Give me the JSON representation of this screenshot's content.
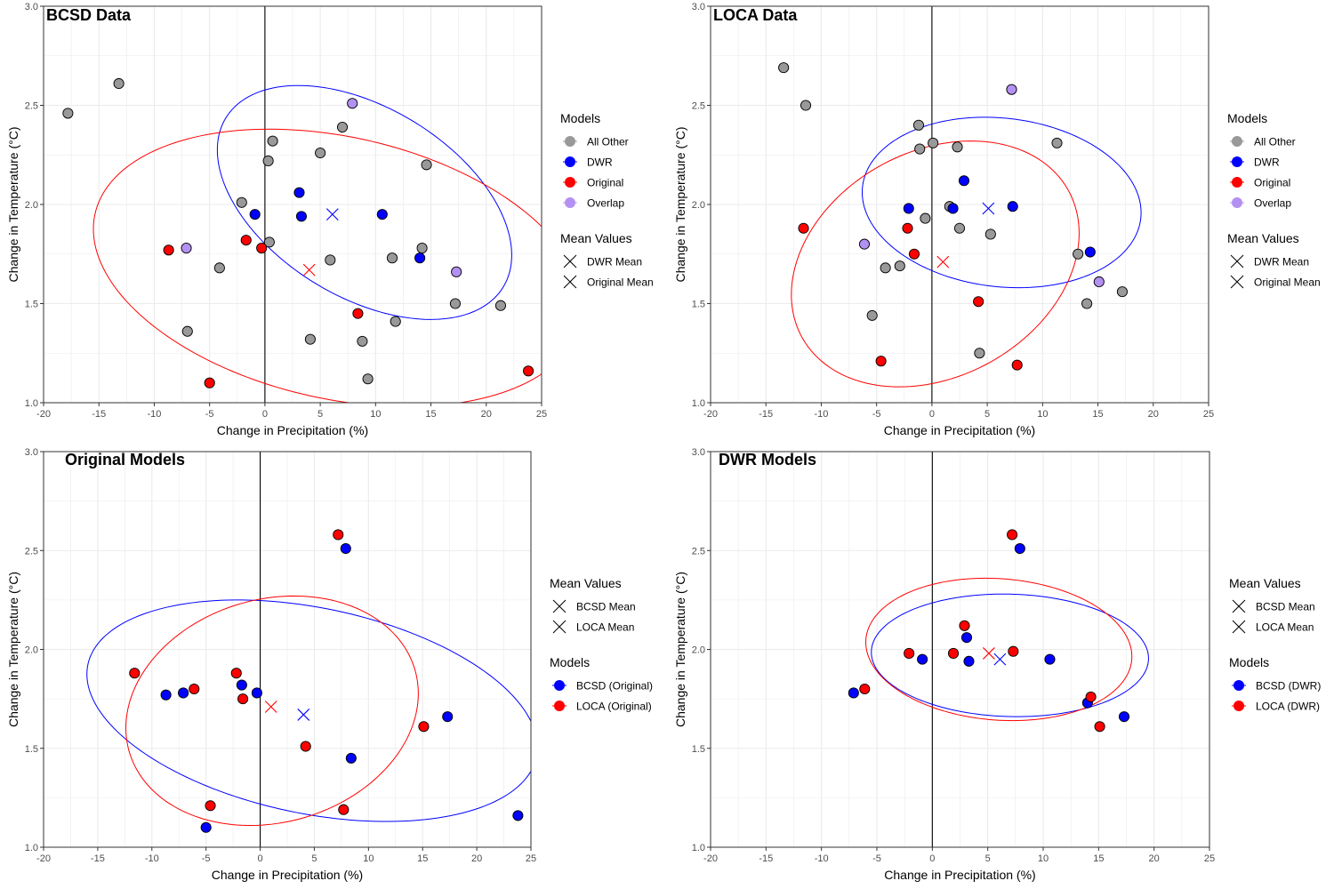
{
  "figure": {
    "legend_models_title": "Models",
    "legend_means_title": "Mean Values"
  },
  "colors": {
    "all_other": "#999999",
    "dwr": "#0000ff",
    "original": "#ff0000",
    "overlap": "#b391f2",
    "grid": "#ebebeb",
    "axis_text": "#4d4d4d"
  },
  "chart_data": [
    {
      "type": "scatter",
      "title": "BCSD Data",
      "xlabel": "Change in Precipitation (%)",
      "ylabel": "Change in Temperature (°C)",
      "xlim": [
        -20,
        25
      ],
      "ylim": [
        1.0,
        3.0
      ],
      "xticks": [
        "-20",
        "-15",
        "-10",
        "-5",
        "0",
        "5",
        "10",
        "15",
        "20",
        "25"
      ],
      "yticks": [
        "1.0",
        "1.5",
        "2.0",
        "2.5",
        "3.0"
      ],
      "grid": true,
      "legend": {
        "order": [
          "models",
          "means"
        ],
        "models": [
          {
            "label": "All Other",
            "color": "#999999"
          },
          {
            "label": "DWR",
            "color": "#0000ff"
          },
          {
            "label": "Original",
            "color": "#ff0000"
          },
          {
            "label": "Overlap",
            "color": "#b391f2"
          }
        ],
        "means": [
          {
            "label": "DWR Mean"
          },
          {
            "label": "Original Mean"
          }
        ]
      },
      "series": [
        {
          "name": "All Other",
          "color": "#999999",
          "points": [
            [
              -17.8,
              2.46
            ],
            [
              -13.2,
              2.61
            ],
            [
              -7.0,
              1.36
            ],
            [
              -4.1,
              1.68
            ],
            [
              -2.1,
              2.01
            ],
            [
              0.3,
              2.22
            ],
            [
              0.4,
              1.81
            ],
            [
              0.7,
              2.32
            ],
            [
              4.1,
              1.32
            ],
            [
              5.0,
              2.26
            ],
            [
              5.9,
              1.72
            ],
            [
              7.0,
              2.39
            ],
            [
              8.8,
              1.31
            ],
            [
              9.3,
              1.12
            ],
            [
              11.5,
              1.73
            ],
            [
              11.8,
              1.41
            ],
            [
              14.2,
              1.78
            ],
            [
              14.6,
              2.2
            ],
            [
              17.2,
              1.5
            ],
            [
              21.3,
              1.49
            ]
          ]
        },
        {
          "name": "DWR",
          "color": "#0000ff",
          "points": [
            [
              -0.9,
              1.95
            ],
            [
              3.1,
              2.06
            ],
            [
              3.3,
              1.94
            ],
            [
              10.6,
              1.95
            ],
            [
              14.0,
              1.73
            ]
          ]
        },
        {
          "name": "Original",
          "color": "#ff0000",
          "points": [
            [
              -8.7,
              1.77
            ],
            [
              -5.0,
              1.1
            ],
            [
              -1.7,
              1.82
            ],
            [
              -0.3,
              1.78
            ],
            [
              8.4,
              1.45
            ],
            [
              23.8,
              1.16
            ]
          ]
        },
        {
          "name": "Overlap",
          "color": "#b391f2",
          "points": [
            [
              -7.1,
              1.78
            ],
            [
              7.9,
              2.51
            ],
            [
              17.3,
              1.66
            ]
          ]
        }
      ],
      "means": [
        {
          "name": "DWR Mean",
          "color": "#0000ff",
          "x": 6.1,
          "y": 1.95
        },
        {
          "name": "Original Mean",
          "color": "#ff0000",
          "x": 4.0,
          "y": 1.67
        }
      ],
      "ellipses": [
        {
          "color": "#0000ff",
          "cx": 9.0,
          "cy": 2.01,
          "x_halfwidth": 13.3,
          "y_halfheight": 0.59,
          "tilt": 0.45
        },
        {
          "color": "#ff0000",
          "cx": 6.6,
          "cy": 1.68,
          "x_halfwidth": 22.1,
          "y_halfheight": 0.7,
          "tilt": 0.28
        }
      ]
    },
    {
      "type": "scatter",
      "title": "LOCA Data",
      "xlabel": "Change in Precipitation (%)",
      "ylabel": "Change in Temperature (°C)",
      "xlim": [
        -20,
        25
      ],
      "ylim": [
        1.0,
        3.0
      ],
      "xticks": [
        "-20",
        "-15",
        "-10",
        "-5",
        "0",
        "5",
        "10",
        "15",
        "20",
        "25"
      ],
      "yticks": [
        "1.0",
        "1.5",
        "2.0",
        "2.5",
        "3.0"
      ],
      "grid": true,
      "legend": {
        "order": [
          "models",
          "means"
        ],
        "models": [
          {
            "label": "All Other",
            "color": "#999999"
          },
          {
            "label": "DWR",
            "color": "#0000ff"
          },
          {
            "label": "Original",
            "color": "#ff0000"
          },
          {
            "label": "Overlap",
            "color": "#b391f2"
          }
        ],
        "means": [
          {
            "label": "DWR Mean"
          },
          {
            "label": "Original Mean"
          }
        ]
      },
      "series": [
        {
          "name": "All Other",
          "color": "#999999",
          "points": [
            [
              -13.4,
              2.69
            ],
            [
              -11.4,
              2.5
            ],
            [
              -5.4,
              1.44
            ],
            [
              -4.2,
              1.68
            ],
            [
              -2.9,
              1.69
            ],
            [
              -1.2,
              2.4
            ],
            [
              -1.1,
              2.28
            ],
            [
              -0.6,
              1.93
            ],
            [
              0.1,
              2.31
            ],
            [
              1.6,
              1.99
            ],
            [
              2.3,
              2.29
            ],
            [
              2.5,
              1.88
            ],
            [
              4.3,
              1.25
            ],
            [
              5.3,
              1.85
            ],
            [
              11.3,
              2.31
            ],
            [
              13.2,
              1.75
            ],
            [
              14.0,
              1.5
            ],
            [
              17.2,
              1.56
            ]
          ]
        },
        {
          "name": "DWR",
          "color": "#0000ff",
          "points": [
            [
              -2.1,
              1.98
            ],
            [
              1.9,
              1.98
            ],
            [
              2.9,
              2.12
            ],
            [
              7.3,
              1.99
            ],
            [
              14.3,
              1.76
            ]
          ]
        },
        {
          "name": "Original",
          "color": "#ff0000",
          "points": [
            [
              -11.6,
              1.88
            ],
            [
              -4.6,
              1.21
            ],
            [
              -2.2,
              1.88
            ],
            [
              -1.6,
              1.75
            ],
            [
              4.2,
              1.51
            ],
            [
              7.7,
              1.19
            ]
          ]
        },
        {
          "name": "Overlap",
          "color": "#b391f2",
          "points": [
            [
              -6.1,
              1.8
            ],
            [
              7.2,
              2.58
            ],
            [
              15.1,
              1.61
            ]
          ]
        }
      ],
      "means": [
        {
          "name": "DWR Mean",
          "color": "#0000ff",
          "x": 5.1,
          "y": 1.98
        },
        {
          "name": "Original Mean",
          "color": "#ff0000",
          "x": 1.0,
          "y": 1.71
        }
      ],
      "ellipses": [
        {
          "color": "#0000ff",
          "cx": 6.3,
          "cy": 2.01,
          "x_halfwidth": 12.6,
          "y_halfheight": 0.43,
          "tilt": 0.12
        },
        {
          "color": "#ff0000",
          "cx": 0.3,
          "cy": 1.7,
          "x_halfwidth": 13.0,
          "y_halfheight": 0.62,
          "tilt": -0.25
        }
      ]
    },
    {
      "type": "scatter",
      "title": "Original Models",
      "xlabel": "Change in Precipitation (%)",
      "ylabel": "Change in Temperature (°C)",
      "xlim": [
        -20,
        25
      ],
      "ylim": [
        1.0,
        3.0
      ],
      "xticks": [
        "-20",
        "-15",
        "-10",
        "-5",
        "0",
        "5",
        "10",
        "15",
        "20",
        "25"
      ],
      "yticks": [
        "1.0",
        "1.5",
        "2.0",
        "2.5",
        "3.0"
      ],
      "grid": true,
      "legend": {
        "order": [
          "means",
          "models"
        ],
        "models": [
          {
            "label": "BCSD (Original)",
            "color": "#0000ff"
          },
          {
            "label": "LOCA (Original)",
            "color": "#ff0000"
          }
        ],
        "means": [
          {
            "label": "BCSD Mean"
          },
          {
            "label": "LOCA Mean"
          }
        ]
      },
      "series": [
        {
          "name": "BCSD (Original)",
          "color": "#0000ff",
          "points": [
            [
              -8.7,
              1.77
            ],
            [
              -7.1,
              1.78
            ],
            [
              -5.0,
              1.1
            ],
            [
              -1.7,
              1.82
            ],
            [
              -0.3,
              1.78
            ],
            [
              7.9,
              2.51
            ],
            [
              8.4,
              1.45
            ],
            [
              17.3,
              1.66
            ],
            [
              23.8,
              1.16
            ]
          ]
        },
        {
          "name": "LOCA (Original)",
          "color": "#ff0000",
          "points": [
            [
              -11.6,
              1.88
            ],
            [
              -6.1,
              1.8
            ],
            [
              -4.6,
              1.21
            ],
            [
              -2.2,
              1.88
            ],
            [
              -1.6,
              1.75
            ],
            [
              4.2,
              1.51
            ],
            [
              7.2,
              2.58
            ],
            [
              7.7,
              1.19
            ],
            [
              15.1,
              1.61
            ]
          ]
        }
      ],
      "means": [
        {
          "name": "BCSD Mean",
          "color": "#0000ff",
          "x": 4.0,
          "y": 1.67
        },
        {
          "name": "LOCA Mean",
          "color": "#ff0000",
          "x": 1.0,
          "y": 1.71
        }
      ],
      "ellipses": [
        {
          "color": "#0000ff",
          "cx": 4.8,
          "cy": 1.69,
          "x_halfwidth": 20.8,
          "y_halfheight": 0.56,
          "tilt": 0.33
        },
        {
          "color": "#ff0000",
          "cx": 1.1,
          "cy": 1.69,
          "x_halfwidth": 13.5,
          "y_halfheight": 0.58,
          "tilt": -0.15
        }
      ]
    },
    {
      "type": "scatter",
      "title": "DWR Models",
      "xlabel": "Change in Precipitation (%)",
      "ylabel": "Change in Temperature (°C)",
      "xlim": [
        -20,
        25
      ],
      "ylim": [
        1.0,
        3.0
      ],
      "xticks": [
        "-20",
        "-15",
        "-10",
        "-5",
        "0",
        "5",
        "10",
        "15",
        "20",
        "25"
      ],
      "yticks": [
        "1.0",
        "1.5",
        "2.0",
        "2.5",
        "3.0"
      ],
      "grid": true,
      "legend": {
        "order": [
          "means",
          "models"
        ],
        "models": [
          {
            "label": "BCSD (DWR)",
            "color": "#0000ff"
          },
          {
            "label": "LOCA (DWR)",
            "color": "#ff0000"
          }
        ],
        "means": [
          {
            "label": "BCSD Mean"
          },
          {
            "label": "LOCA Mean"
          }
        ]
      },
      "series": [
        {
          "name": "BCSD (DWR)",
          "color": "#0000ff",
          "points": [
            [
              -7.1,
              1.78
            ],
            [
              -0.9,
              1.95
            ],
            [
              3.1,
              2.06
            ],
            [
              3.3,
              1.94
            ],
            [
              7.9,
              2.51
            ],
            [
              10.6,
              1.95
            ],
            [
              14.0,
              1.73
            ],
            [
              17.3,
              1.66
            ]
          ]
        },
        {
          "name": "LOCA (DWR)",
          "color": "#ff0000",
          "points": [
            [
              -6.1,
              1.8
            ],
            [
              -2.1,
              1.98
            ],
            [
              1.9,
              1.98
            ],
            [
              2.9,
              2.12
            ],
            [
              7.2,
              2.58
            ],
            [
              7.3,
              1.99
            ],
            [
              14.3,
              1.76
            ],
            [
              15.1,
              1.61
            ]
          ]
        }
      ],
      "means": [
        {
          "name": "BCSD Mean",
          "color": "#0000ff",
          "x": 6.1,
          "y": 1.95
        },
        {
          "name": "LOCA Mean",
          "color": "#ff0000",
          "x": 5.1,
          "y": 1.98
        }
      ],
      "ellipses": [
        {
          "color": "#0000ff",
          "cx": 7.0,
          "cy": 1.97,
          "x_halfwidth": 12.5,
          "y_halfheight": 0.31,
          "tilt": 0.05
        },
        {
          "color": "#ff0000",
          "cx": 6.0,
          "cy": 2.0,
          "x_halfwidth": 12.0,
          "y_halfheight": 0.36,
          "tilt": 0.1
        }
      ]
    }
  ]
}
